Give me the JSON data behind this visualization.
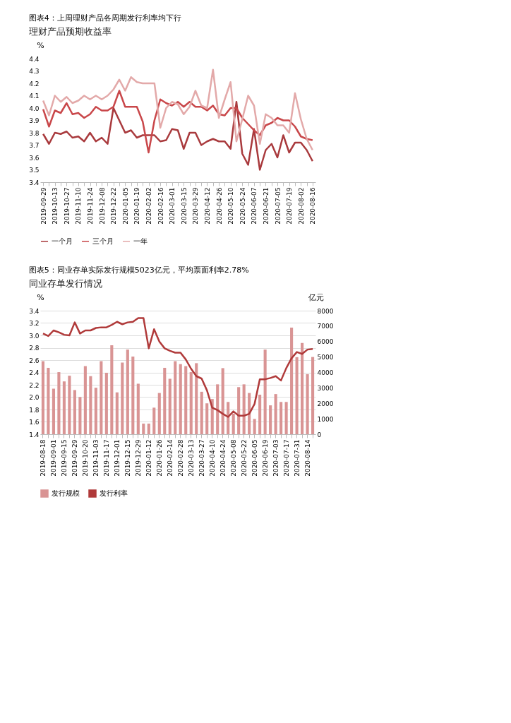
{
  "chart_data": [
    {
      "type": "line",
      "title": "图表4：上周理财产品各周期发行利率均下行",
      "subtitle": "理财产品预期收益率",
      "ylabel": "%",
      "categories": [
        "2019-09-29",
        null,
        "2019-10-13",
        null,
        "2019-10-27",
        null,
        "2019-11-10",
        null,
        "2019-11-24",
        null,
        "2019-12-08",
        null,
        "2019-12-22",
        null,
        "2020-01-05",
        null,
        "2020-01-19",
        null,
        "2020-02-02",
        null,
        "2020-02-16",
        null,
        "2020-03-01",
        null,
        "2020-03-15",
        null,
        "2020-03-29",
        null,
        "2020-04-12",
        null,
        "2020-04-26",
        null,
        "2020-05-10",
        null,
        "2020-05-24",
        null,
        "2020-06-07",
        null,
        "2020-06-21",
        null,
        "2020-07-05",
        null,
        "2020-07-19",
        null,
        "2020-08-02",
        null,
        "2020-08-16"
      ],
      "ylim": [
        3.4,
        4.4
      ],
      "yticks": [
        3.4,
        3.5,
        3.6,
        3.7,
        3.8,
        3.9,
        {
          "value": 4.0,
          "label": "4.0"
        },
        4.1,
        4.2,
        4.3,
        4.4
      ],
      "grid": false,
      "legend": "bottom",
      "line_style": "solid",
      "marker": "none",
      "series": [
        {
          "name": "一个月",
          "color": "#a93a3d",
          "values": [
            3.79,
            3.71,
            3.8,
            3.79,
            3.81,
            3.76,
            3.77,
            3.73,
            3.8,
            3.73,
            3.76,
            3.71,
            4.0,
            3.9,
            3.8,
            3.82,
            3.76,
            3.78,
            3.78,
            3.78,
            3.73,
            3.74,
            3.83,
            3.82,
            3.67,
            3.8,
            3.8,
            3.7,
            3.73,
            3.75,
            3.73,
            3.73,
            3.67,
            4.05,
            3.63,
            3.54,
            3.83,
            3.5,
            3.66,
            3.71,
            3.6,
            3.78,
            3.64,
            3.72,
            3.72,
            3.66,
            3.57
          ]
        },
        {
          "name": "三个月",
          "color": "#c9474a",
          "values": [
            3.99,
            3.85,
            3.98,
            3.96,
            4.04,
            3.95,
            3.96,
            3.92,
            3.95,
            4.01,
            3.98,
            3.98,
            4.01,
            4.14,
            4.01,
            4.01,
            4.01,
            3.89,
            3.64,
            3.9,
            4.07,
            4.04,
            4.02,
            4.05,
            4.01,
            4.05,
            4.01,
            4.01,
            3.98,
            4.02,
            3.95,
            3.94,
            4.0,
            4.0,
            3.92,
            3.87,
            3.82,
            3.78,
            3.86,
            3.88,
            3.92,
            3.9,
            3.9,
            3.85,
            3.77,
            3.75,
            3.74
          ]
        },
        {
          "name": "一年",
          "color": "#e3a9a9",
          "values": [
            4.06,
            3.94,
            4.1,
            4.05,
            4.09,
            4.04,
            4.06,
            4.1,
            4.07,
            4.1,
            4.07,
            4.1,
            4.15,
            4.23,
            4.14,
            4.25,
            4.21,
            4.2,
            4.2,
            4.2,
            3.84,
            4.0,
            4.05,
            4.03,
            3.95,
            4.01,
            4.14,
            4.02,
            4.0,
            4.31,
            3.92,
            4.07,
            4.21,
            3.73,
            3.91,
            4.1,
            4.02,
            3.71,
            3.95,
            3.92,
            3.86,
            3.86,
            3.8,
            4.12,
            3.91,
            3.75,
            3.66
          ]
        }
      ]
    },
    {
      "type": "bar",
      "title": "图表5：同业存单实际发行规模5023亿元，平均票面利率2.78%",
      "subtitle": "同业存单发行情况",
      "ylabel": "%",
      "y2label": "亿元",
      "categories": [
        "2019-08-18",
        null,
        "2019-09-01",
        null,
        "2019-09-15",
        null,
        "2019-09-29",
        null,
        "2019-10-20",
        null,
        "2019-11-03",
        null,
        "2019-11-17",
        null,
        "2019-12-01",
        null,
        "2019-12-15",
        null,
        "2019-12-29",
        null,
        "2020-01-12",
        null,
        "2020-01-26",
        null,
        "2020-02-14",
        null,
        "2020-02-28",
        null,
        "2020-03-13",
        null,
        "2020-03-27",
        null,
        "2020-04-10",
        null,
        "2020-04-24",
        null,
        "2020-05-08",
        null,
        "2020-05-22",
        null,
        "2020-06-05",
        null,
        "2020-06-19",
        null,
        "2020-07-03",
        null,
        "2020-07-17",
        null,
        "2020-07-31",
        null,
        "2020-08-14",
        null
      ],
      "ylim": [
        1.4,
        3.4
      ],
      "yticks": [
        1.4,
        1.6,
        1.8,
        {
          "value": 2.0,
          "label": "2.0"
        },
        2.2,
        2.4,
        2.6,
        2.8,
        {
          "value": 3.0,
          "label": "3.0"
        },
        3.2,
        3.4
      ],
      "y2lim": [
        0,
        8000
      ],
      "y2ticks": [
        0,
        1000,
        2000,
        3000,
        4000,
        5000,
        6000,
        7000,
        8000
      ],
      "grid": "y",
      "legend": "bottom",
      "series": [
        {
          "name": "发行规模",
          "type": "bar",
          "axis": "y2",
          "color": "#d99494",
          "values": [
            4730,
            4300,
            2950,
            4020,
            3420,
            3790,
            2860,
            2410,
            4410,
            3760,
            3010,
            4730,
            3980,
            5760,
            2710,
            4640,
            5480,
            5030,
            3270,
            690,
            690,
            1720,
            2670,
            4300,
            3590,
            4730,
            4540,
            4410,
            4020,
            4600,
            2750,
            2000,
            2280,
            3230,
            4280,
            2090,
            1330,
            3050,
            3230,
            2670,
            990,
            2560,
            5480,
            1870,
            2600,
            2090,
            2090,
            6900,
            4990,
            5910,
            3890,
            5000
          ]
        },
        {
          "name": "发行利率",
          "type": "line",
          "axis": "y",
          "color": "#b03a3a",
          "values": [
            3.03,
            2.99,
            3.08,
            3.05,
            3.01,
            3.0,
            3.21,
            3.03,
            3.08,
            3.08,
            3.12,
            3.13,
            3.13,
            3.17,
            3.22,
            3.18,
            3.21,
            3.22,
            3.28,
            3.28,
            2.79,
            3.1,
            2.9,
            2.79,
            2.75,
            2.72,
            2.72,
            2.61,
            2.46,
            2.34,
            2.3,
            2.11,
            1.83,
            1.79,
            1.73,
            1.68,
            1.77,
            1.7,
            1.7,
            1.73,
            1.89,
            2.29,
            2.29,
            2.31,
            2.34,
            2.27,
            2.47,
            2.63,
            2.73,
            2.7,
            2.77,
            2.78
          ]
        }
      ]
    }
  ]
}
